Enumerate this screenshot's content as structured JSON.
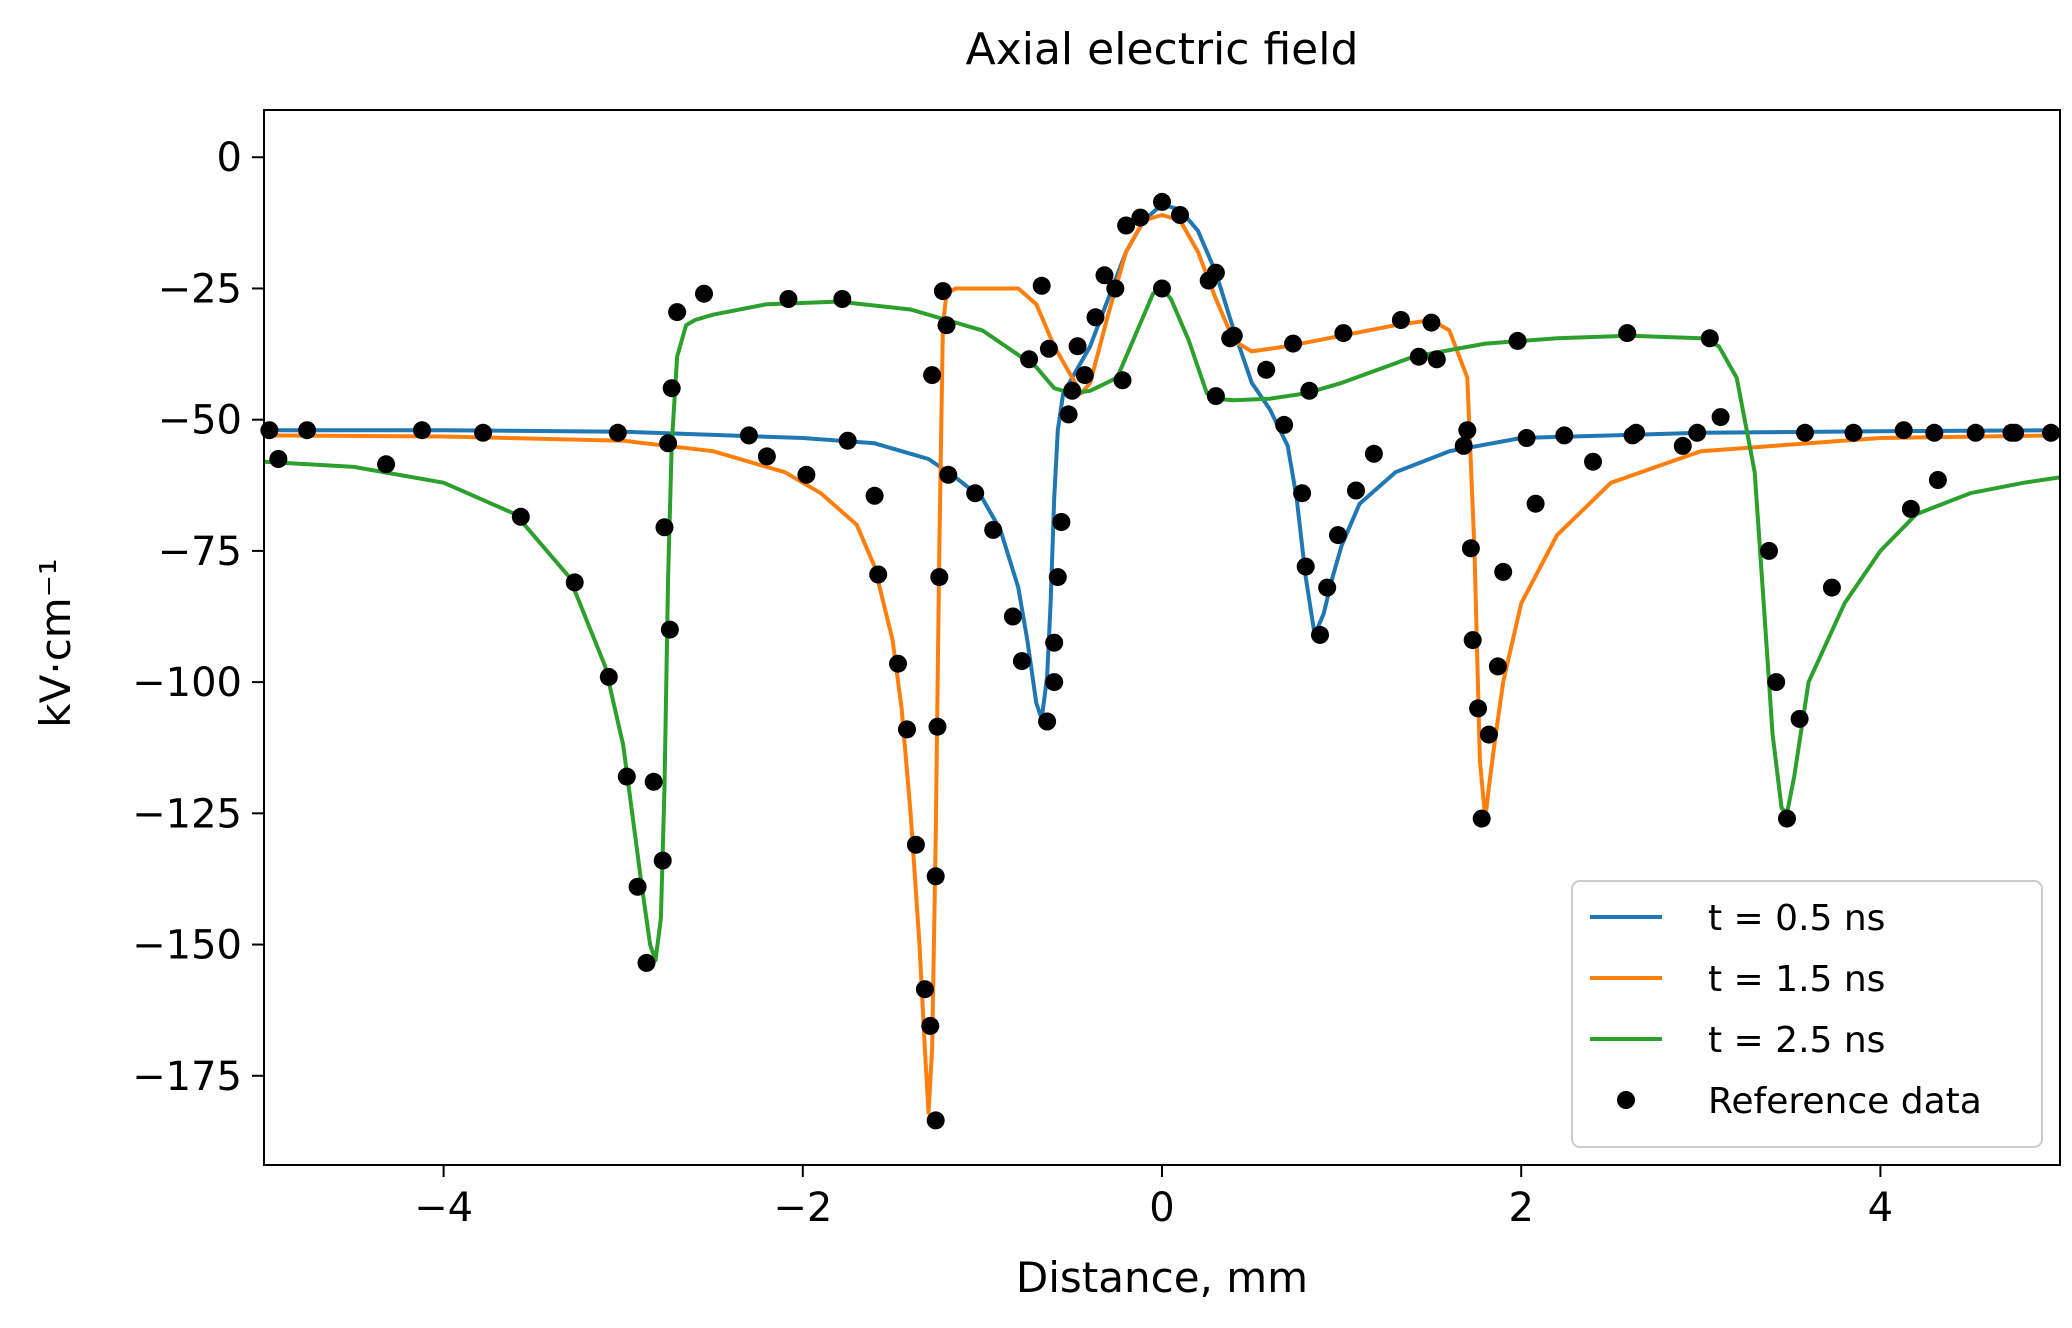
{
  "chart_data": {
    "type": "line",
    "title": "Axial electric field",
    "xlabel": "Distance, mm",
    "ylabel": "kV·cm⁻¹",
    "xlim": [
      -5,
      5
    ],
    "ylim": [
      -192,
      9
    ],
    "xticks": [
      -4,
      -2,
      0,
      2,
      4
    ],
    "xtick_labels": [
      "−4",
      "−2",
      "0",
      "2",
      "4"
    ],
    "yticks": [
      0,
      -25,
      -50,
      -75,
      -100,
      -125,
      -150,
      -175
    ],
    "ytick_labels": [
      "0",
      "−25",
      "−50",
      "−75",
      "−100",
      "−125",
      "−150",
      "−175"
    ],
    "grid": false,
    "legend_position": "lower-right",
    "series": [
      {
        "name": "t = 0.5 ns",
        "color": "#1f77b4",
        "marker": "none",
        "x": [
          -5,
          -4,
          -3,
          -2,
          -1.6,
          -1.3,
          -1.15,
          -1.0,
          -0.9,
          -0.8,
          -0.75,
          -0.7,
          -0.67,
          -0.64,
          -0.62,
          -0.6,
          -0.58,
          -0.55,
          -0.5,
          -0.4,
          -0.3,
          -0.2,
          -0.1,
          0,
          0.1,
          0.2,
          0.3,
          0.4,
          0.5,
          0.6,
          0.7,
          0.75,
          0.8,
          0.85,
          0.9,
          0.95,
          1.0,
          1.1,
          1.3,
          1.6,
          2,
          3,
          4,
          5
        ],
        "y": [
          -52,
          -52,
          -52.3,
          -53.5,
          -54.5,
          -57.5,
          -61,
          -65,
          -71,
          -82,
          -92,
          -104,
          -107,
          -99,
          -85,
          -65,
          -52,
          -45,
          -42,
          -36,
          -27,
          -18,
          -12,
          -9,
          -10,
          -14,
          -22,
          -33,
          -43,
          -48,
          -55,
          -65,
          -80,
          -91,
          -87,
          -80,
          -74,
          -66,
          -60,
          -56,
          -53.5,
          -52.5,
          -52.2,
          -52
        ]
      },
      {
        "name": "t = 1.5 ns",
        "color": "#ff7f0e",
        "marker": "none",
        "x": [
          -5,
          -4,
          -3,
          -2.5,
          -2.1,
          -1.9,
          -1.7,
          -1.6,
          -1.5,
          -1.45,
          -1.4,
          -1.35,
          -1.32,
          -1.3,
          -1.28,
          -1.26,
          -1.24,
          -1.22,
          -1.2,
          -1.15,
          -1.0,
          -0.8,
          -0.7,
          -0.6,
          -0.5,
          -0.45,
          -0.4,
          -0.3,
          -0.2,
          -0.1,
          0,
          0.1,
          0.2,
          0.3,
          0.4,
          0.5,
          0.7,
          1.0,
          1.3,
          1.5,
          1.6,
          1.7,
          1.74,
          1.77,
          1.8,
          1.82,
          1.85,
          1.9,
          2.0,
          2.2,
          2.5,
          3,
          4,
          5
        ],
        "y": [
          -53,
          -53.2,
          -54,
          -56,
          -60,
          -64,
          -70,
          -78,
          -92,
          -105,
          -125,
          -150,
          -170,
          -182,
          -170,
          -130,
          -75,
          -32,
          -26,
          -25,
          -25,
          -25,
          -28,
          -36,
          -42,
          -45,
          -43,
          -30,
          -18,
          -12,
          -11,
          -12,
          -18,
          -27,
          -35,
          -37,
          -36,
          -34,
          -32,
          -31,
          -33,
          -42,
          -75,
          -115,
          -126,
          -120,
          -112,
          -100,
          -85,
          -72,
          -62,
          -56,
          -53.5,
          -53
        ]
      },
      {
        "name": "t = 2.5 ns",
        "color": "#2ca02c",
        "marker": "none",
        "x": [
          -5,
          -4.5,
          -4,
          -3.6,
          -3.3,
          -3.1,
          -3.0,
          -2.95,
          -2.9,
          -2.85,
          -2.82,
          -2.79,
          -2.77,
          -2.75,
          -2.73,
          -2.7,
          -2.65,
          -2.6,
          -2.5,
          -2.2,
          -1.8,
          -1.4,
          -1.0,
          -0.7,
          -0.6,
          -0.5,
          -0.4,
          -0.25,
          -0.15,
          -0.05,
          0,
          0.05,
          0.15,
          0.25,
          0.3,
          0.4,
          0.6,
          0.8,
          1.0,
          1.4,
          1.8,
          2.2,
          2.6,
          3.0,
          3.1,
          3.2,
          3.3,
          3.35,
          3.4,
          3.45,
          3.48,
          3.52,
          3.6,
          3.8,
          4.0,
          4.2,
          4.5,
          4.8,
          5
        ],
        "y": [
          -58,
          -59,
          -62,
          -68,
          -80,
          -97,
          -112,
          -125,
          -138,
          -150,
          -153,
          -145,
          -120,
          -80,
          -55,
          -38,
          -32,
          -31,
          -30,
          -28,
          -27.5,
          -29,
          -33,
          -40,
          -44,
          -45,
          -44.5,
          -42,
          -34,
          -26,
          -25,
          -27,
          -35,
          -45,
          -46,
          -46.3,
          -46,
          -45,
          -43,
          -38,
          -35.5,
          -34.5,
          -34,
          -34.5,
          -36,
          -42,
          -60,
          -85,
          -110,
          -124,
          -125,
          -118,
          -100,
          -85,
          -75,
          -68,
          -64,
          -62,
          -61
        ]
      },
      {
        "name": "Reference data",
        "color": "#000000",
        "marker": "circle",
        "x": [
          -4.97,
          -4.92,
          -4.76,
          -4.32,
          -4.12,
          -3.78,
          -3.57,
          -3.27,
          -3.08,
          -3.03,
          -2.98,
          -2.92,
          -2.87,
          -2.83,
          -2.78,
          -2.77,
          -2.75,
          -2.74,
          -2.73,
          -2.7,
          -2.55,
          -2.3,
          -2.2,
          -2.08,
          -1.98,
          -1.78,
          -1.75,
          -1.6,
          -1.58,
          -1.47,
          -1.42,
          -1.37,
          -1.32,
          -1.29,
          -1.28,
          -1.26,
          -1.26,
          -1.25,
          -1.24,
          -1.22,
          -1.2,
          -1.19,
          -1.04,
          -0.94,
          -0.83,
          -0.78,
          -0.74,
          -0.67,
          -0.64,
          -0.63,
          -0.6,
          -0.6,
          -0.58,
          -0.56,
          -0.52,
          -0.5,
          -0.47,
          -0.43,
          -0.37,
          -0.32,
          -0.26,
          -0.22,
          -0.2,
          -0.12,
          0,
          0,
          0.1,
          0.26,
          0.3,
          0.3,
          0.38,
          0.4,
          0.58,
          0.68,
          0.73,
          0.78,
          0.8,
          0.82,
          0.88,
          0.92,
          0.98,
          1.01,
          1.08,
          1.18,
          1.33,
          1.43,
          1.5,
          1.53,
          1.68,
          1.7,
          1.72,
          1.73,
          1.76,
          1.78,
          1.82,
          1.87,
          1.9,
          1.98,
          2.03,
          2.08,
          2.24,
          2.4,
          2.59,
          2.62,
          2.64,
          2.9,
          2.98,
          3.05,
          3.11,
          3.38,
          3.42,
          3.48,
          3.55,
          3.58,
          3.73,
          3.85,
          4.13,
          4.17,
          4.3,
          4.32,
          4.53,
          4.73,
          4.75,
          4.95
        ],
        "y": [
          -52,
          -57.5,
          -52,
          -58.5,
          -52,
          -52.5,
          -68.5,
          -81,
          -99,
          -52.5,
          -118,
          -139,
          -153.5,
          -119,
          -134,
          -70.5,
          -54.5,
          -90,
          -44,
          -29.5,
          -26,
          -53,
          -57,
          -27,
          -60.5,
          -27,
          -54,
          -64.5,
          -79.5,
          -96.5,
          -109,
          -131,
          -158.5,
          -165.5,
          -41.5,
          -183.5,
          -137,
          -108.5,
          -80,
          -25.5,
          -32,
          -60.5,
          -64,
          -71,
          -87.5,
          -96,
          -38.5,
          -24.5,
          -107.5,
          -36.5,
          -92.5,
          -100,
          -80,
          -69.5,
          -49,
          -44.5,
          -36,
          -41.5,
          -30.5,
          -22.5,
          -25,
          -42.5,
          -13,
          -11.5,
          -8.5,
          -25,
          -11,
          -23.5,
          -22,
          -45.5,
          -34.5,
          -34,
          -40.5,
          -51,
          -35.5,
          -64,
          -78,
          -44.5,
          -91,
          -82,
          -72,
          -33.5,
          -63.5,
          -56.5,
          -31,
          -38,
          -31.5,
          -38.5,
          -55,
          -52,
          -74.5,
          -92,
          -105,
          -126,
          -110,
          -97,
          -79,
          -35,
          -53.5,
          -66,
          -53,
          -58,
          -33.5,
          -53,
          -52.5,
          -55,
          -52.5,
          -34.5,
          -49.5,
          -75,
          -100,
          -126,
          -107,
          -52.5,
          -82,
          -52.5,
          -52,
          -67,
          -52.5,
          -61.5,
          -52.5,
          -52.5,
          -52.5,
          -52.5
        ]
      }
    ]
  }
}
